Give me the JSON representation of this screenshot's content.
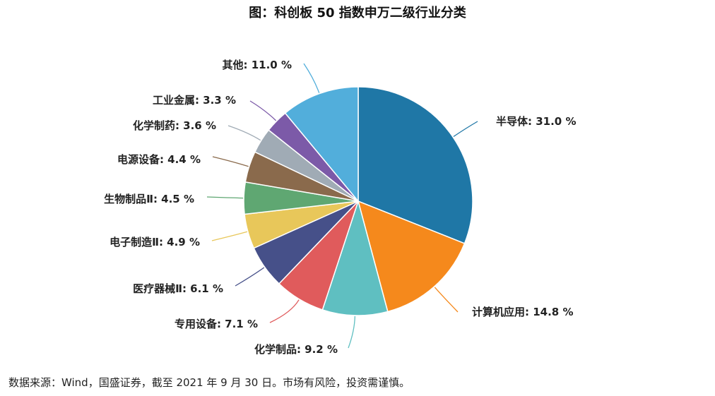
{
  "chart_data": {
    "type": "pie",
    "title": "图：科创板 50 指数申万二级行业分类",
    "unit": "%",
    "categories": [
      "半导体",
      "计算机应用",
      "化学制品",
      "专用设备",
      "医疗器械Ⅱ",
      "电子制造Ⅱ",
      "生物制品Ⅱ",
      "电源设备",
      "化学制药",
      "工业金属",
      "其他"
    ],
    "values": [
      31.0,
      14.8,
      9.2,
      7.1,
      6.1,
      4.9,
      4.5,
      4.4,
      3.6,
      3.3,
      11.0
    ],
    "colors": [
      "#1f77a6",
      "#f5891c",
      "#5fbfc1",
      "#e05b5c",
      "#465089",
      "#e8c75a",
      "#5fa772",
      "#8a6a4c",
      "#a0abb5",
      "#7c5aa8",
      "#52aedb"
    ]
  },
  "source": "数据来源：Wind，国盛证券，截至 2021 年 9 月 30 日。市场有风险，投资需谨慎。"
}
